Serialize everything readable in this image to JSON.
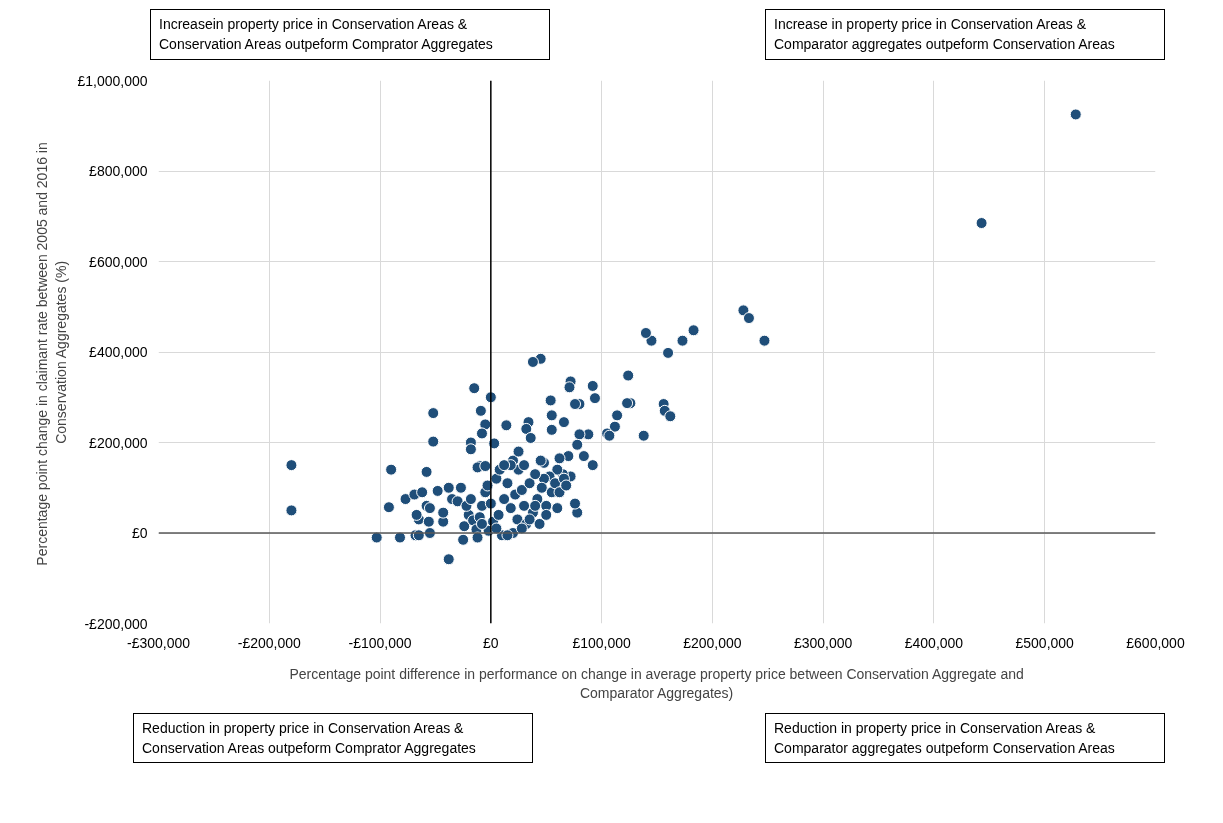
{
  "chart_data": {
    "type": "scatter",
    "xlabel": "Percentage point difference in performance on change in average property price between Conservation Aggregate and\nComparator Aggregates)",
    "ylabel": "Percentage point change in claimant rate between 2005 and 2016  in\nConservation Aggregates (%)",
    "annotations": [
      "Increasein property price in Conservation Areas &\nConservation Areas outpeform Comprator Aggregates",
      "Increase in property price in  Conservation Areas &\nComparator aggregates outpeform Conservation Areas",
      "Reduction in property price in Conservation Areas &\nConservation Areas outpeform Comprator Aggregates",
      "Reduction in property price in Conservation Areas &\nComparator aggregates outpeform Conservation Areas"
    ],
    "x": [
      528000,
      443000,
      228000,
      233000,
      247000,
      183000,
      173000,
      160000,
      145000,
      140000,
      156000,
      157000,
      162000,
      138000,
      126000,
      123000,
      124000,
      114000,
      112000,
      105000,
      107000,
      94000,
      92000,
      92000,
      88000,
      80000,
      84000,
      78000,
      80000,
      76000,
      78000,
      76000,
      72000,
      72000,
      71000,
      66000,
      70000,
      62000,
      65000,
      60000,
      55000,
      54000,
      55000,
      53000,
      48000,
      45000,
      38000,
      34000,
      32000,
      36000,
      20000,
      14000,
      3000,
      0,
      -5000,
      -9000,
      -8000,
      -15000,
      -18000,
      -18000,
      -10000,
      -52000,
      -52000,
      -58000,
      -90000,
      -180000,
      -180000,
      -103000,
      -82000,
      -68000,
      -65000,
      -38000,
      -92000,
      -77000,
      -69000,
      -62000,
      -65000,
      -67000,
      -58000,
      -55000,
      -55000,
      -56000,
      -48000,
      -43000,
      -43000,
      -38000,
      -35000,
      -30000,
      -27000,
      -25000,
      -24000,
      -20000,
      -22000,
      -18000,
      -16000,
      -13000,
      -12000,
      -10000,
      -8000,
      -5000,
      -3000,
      0,
      2000,
      5000,
      7000,
      8000,
      10000,
      12000,
      15000,
      18000,
      20000,
      22000,
      24000,
      25000,
      28000,
      30000,
      32000,
      35000,
      38000,
      40000,
      42000,
      44000,
      46000,
      48000,
      50000,
      55000,
      58000,
      60000,
      62000,
      66000,
      68000,
      45000,
      30000,
      18000,
      12000,
      -12000,
      -5000,
      25000,
      40000,
      15000,
      -2000,
      5000,
      50000,
      35000,
      28000,
      -8000
    ],
    "values": [
      925000,
      685000,
      492000,
      475000,
      425000,
      448000,
      425000,
      398000,
      425000,
      442000,
      285000,
      270000,
      258000,
      215000,
      287000,
      287000,
      348000,
      260000,
      235000,
      220000,
      215000,
      298000,
      325000,
      150000,
      218000,
      218000,
      170000,
      195000,
      285000,
      285000,
      45000,
      65000,
      125000,
      335000,
      322000,
      245000,
      170000,
      165000,
      130000,
      140000,
      260000,
      293000,
      228000,
      125000,
      120000,
      385000,
      378000,
      245000,
      230000,
      210000,
      160000,
      238000,
      198000,
      300000,
      240000,
      270000,
      220000,
      320000,
      200000,
      185000,
      148000,
      265000,
      202000,
      135000,
      140000,
      150000,
      50000,
      -10000,
      -10000,
      -5000,
      -5000,
      -58000,
      57000,
      75000,
      85000,
      90000,
      30000,
      40000,
      60000,
      55000,
      0,
      25000,
      93000,
      25000,
      45000,
      100000,
      75000,
      70000,
      100000,
      -15000,
      15000,
      40000,
      60000,
      75000,
      28000,
      8000,
      -10000,
      35000,
      60000,
      90000,
      105000,
      65000,
      25000,
      120000,
      40000,
      140000,
      -5000,
      75000,
      110000,
      55000,
      0,
      85000,
      30000,
      140000,
      95000,
      60000,
      20000,
      110000,
      45000,
      130000,
      75000,
      20000,
      100000,
      155000,
      60000,
      90000,
      110000,
      55000,
      90000,
      120000,
      105000,
      160000,
      150000,
      150000,
      150000,
      145000,
      148000,
      180000,
      60000,
      -5000,
      5000,
      10000,
      40000,
      30000,
      10000,
      20000
    ],
    "color": "#1f4e79",
    "marker": "circle",
    "xlim": [
      -300000,
      600000
    ],
    "xticks": [
      {
        "value": -300000,
        "label": "-£300,000"
      },
      {
        "value": -200000,
        "label": "-£200,000"
      },
      {
        "value": -100000,
        "label": "-£100,000"
      },
      {
        "value": 0,
        "label": "£0"
      },
      {
        "value": 100000,
        "label": "£100,000"
      },
      {
        "value": 200000,
        "label": "£200,000"
      },
      {
        "value": 300000,
        "label": "£300,000"
      },
      {
        "value": 400000,
        "label": "£400,000"
      },
      {
        "value": 500000,
        "label": "£500,000"
      },
      {
        "value": 600000,
        "label": "£600,000"
      }
    ],
    "ylim": [
      -200000,
      1000000
    ],
    "yticks": [
      {
        "value": -200000,
        "label": "-£200,000"
      },
      {
        "value": 0,
        "label": "£0"
      },
      {
        "value": 200000,
        "label": "£200,000"
      },
      {
        "value": 400000,
        "label": "£400,000"
      },
      {
        "value": 600000,
        "label": "£600,000"
      },
      {
        "value": 800000,
        "label": "£800,000"
      },
      {
        "value": 1000000,
        "label": "£1,000,000"
      }
    ],
    "grid": true,
    "ref_lines": [
      {
        "axis": "x",
        "value": 0,
        "color": "#000000"
      },
      {
        "axis": "y",
        "value": 0,
        "color": "#595959"
      }
    ]
  }
}
